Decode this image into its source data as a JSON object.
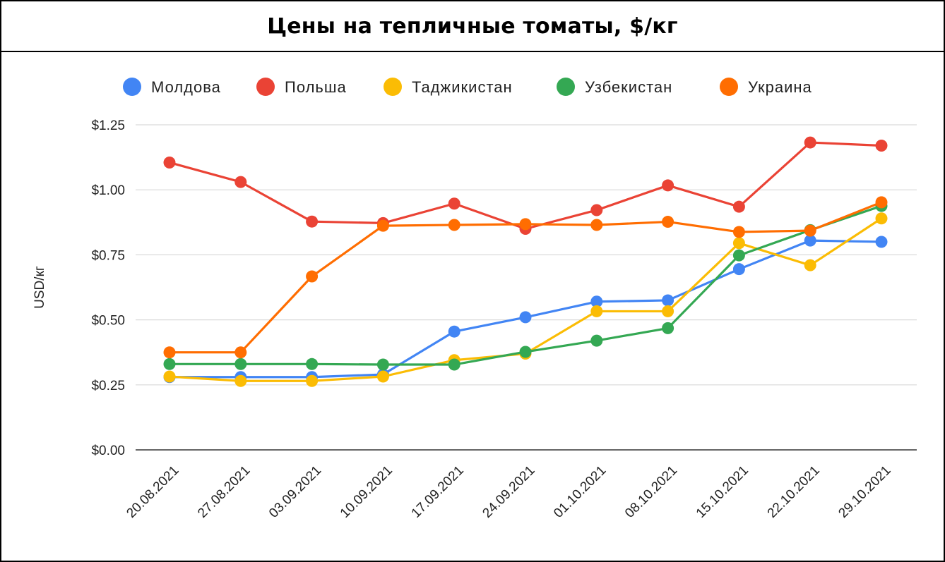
{
  "chart_data": {
    "type": "line",
    "title": "Цены на тепличные томаты, $/кг",
    "xlabel": "",
    "ylabel": "USD/кг",
    "ylim": [
      0,
      1.25
    ],
    "yticks": [
      "$0.00",
      "$0.25",
      "$0.50",
      "$0.75",
      "$1.00",
      "$1.25"
    ],
    "grid": true,
    "legend_position": "top",
    "categories": [
      "20.08.2021",
      "27.08.2021",
      "03.09.2021",
      "10.09.2021",
      "17.09.2021",
      "24.09.2021",
      "01.10.2021",
      "08.10.2021",
      "15.10.2021",
      "22.10.2021",
      "29.10.2021"
    ],
    "series": [
      {
        "name": "Молдова",
        "color": "#4285f4",
        "values": [
          0.28,
          0.28,
          0.28,
          0.29,
          0.455,
          0.51,
          0.57,
          0.575,
          0.695,
          0.805,
          0.8
        ]
      },
      {
        "name": "Польша",
        "color": "#ea4335",
        "values": [
          1.105,
          1.03,
          0.878,
          0.872,
          0.947,
          0.85,
          0.922,
          1.017,
          0.935,
          1.182,
          1.17
        ]
      },
      {
        "name": "Таджикистан",
        "color": "#fbbc04",
        "values": [
          0.282,
          0.265,
          0.265,
          0.282,
          0.345,
          0.37,
          0.533,
          0.533,
          0.795,
          0.71,
          0.89
        ]
      },
      {
        "name": "Узбекистан",
        "color": "#34a853",
        "values": [
          0.33,
          0.33,
          0.33,
          0.328,
          0.328,
          0.377,
          0.42,
          0.468,
          0.748,
          0.845,
          0.938
        ]
      },
      {
        "name": "Украина",
        "color": "#ff6d01",
        "values": [
          0.375,
          0.375,
          0.667,
          0.862,
          0.865,
          0.868,
          0.865,
          0.877,
          0.838,
          0.843,
          0.952
        ]
      }
    ]
  }
}
